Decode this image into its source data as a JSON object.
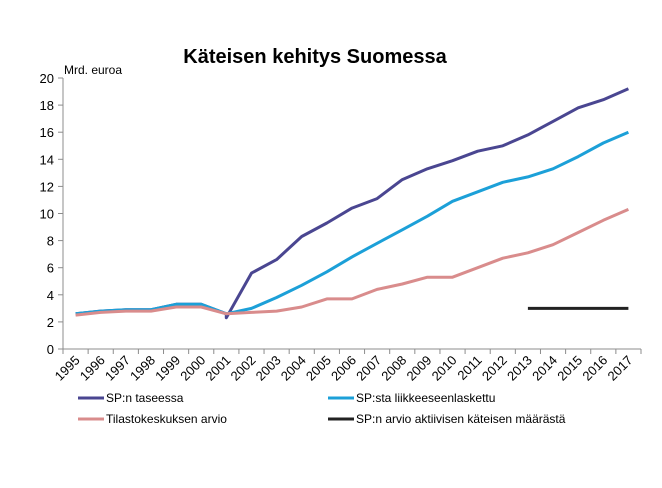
{
  "chart_data": {
    "type": "line",
    "title": "Käteisen kehitys Suomessa",
    "ylabel": "Mrd. euroa",
    "xlabel": "",
    "ylim": [
      0,
      20
    ],
    "y_ticks": [
      "0",
      "2",
      "4",
      "6",
      "8",
      "10",
      "12",
      "14",
      "16",
      "18",
      "20"
    ],
    "categories": [
      "1995",
      "1996",
      "1997",
      "1998",
      "1999",
      "2000",
      "2001",
      "2002",
      "2003",
      "2004",
      "2005",
      "2006",
      "2007",
      "2008",
      "2009",
      "2010",
      "2011",
      "2012",
      "2013",
      "2014",
      "2015",
      "2016",
      "2017"
    ],
    "grid": false,
    "legend_position": "bottom",
    "series": [
      {
        "name": "SP:n taseessa",
        "color": "#4a4691",
        "x": [
          "1995",
          "1996",
          "1997",
          "1998",
          "1999",
          "2000",
          "2001",
          "2001",
          "2002",
          "2003",
          "2004",
          "2005",
          "2006",
          "2007",
          "2008",
          "2009",
          "2010",
          "2011",
          "2012",
          "2013",
          "2014",
          "2015",
          "2016",
          "2017"
        ],
        "values": [
          2.6,
          2.8,
          2.9,
          2.9,
          3.3,
          3.3,
          2.6,
          2.3,
          5.6,
          6.6,
          8.3,
          9.3,
          10.4,
          11.1,
          12.5,
          13.3,
          13.9,
          14.6,
          15.0,
          15.8,
          16.8,
          17.8,
          18.4,
          19.2
        ]
      },
      {
        "name": "SP:sta liikkeeseenlaskettu",
        "color": "#1ca0d8",
        "x": [
          "1995",
          "1996",
          "1997",
          "1998",
          "1999",
          "2000",
          "2001",
          "2002",
          "2003",
          "2004",
          "2005",
          "2006",
          "2007",
          "2008",
          "2009",
          "2010",
          "2011",
          "2012",
          "2013",
          "2014",
          "2015",
          "2016",
          "2017"
        ],
        "values": [
          2.6,
          2.8,
          2.9,
          2.9,
          3.3,
          3.3,
          2.6,
          3.0,
          3.8,
          4.7,
          5.7,
          6.8,
          7.8,
          8.8,
          9.8,
          10.9,
          11.6,
          12.3,
          12.7,
          13.3,
          14.2,
          15.2,
          16.0
        ]
      },
      {
        "name": "Tilastokeskuksen arvio",
        "color": "#d98c8c",
        "x": [
          "1995",
          "1996",
          "1997",
          "1998",
          "1999",
          "2000",
          "2001",
          "2002",
          "2003",
          "2004",
          "2005",
          "2006",
          "2007",
          "2008",
          "2009",
          "2010",
          "2011",
          "2012",
          "2013",
          "2014",
          "2015",
          "2016",
          "2017"
        ],
        "values": [
          2.5,
          2.7,
          2.8,
          2.8,
          3.1,
          3.1,
          2.6,
          2.7,
          2.8,
          3.1,
          3.7,
          3.7,
          4.4,
          4.8,
          5.3,
          5.3,
          6.0,
          6.7,
          7.1,
          7.7,
          8.6,
          9.5,
          10.3
        ]
      },
      {
        "name": "SP:n arvio aktiivisen käteisen määrästä",
        "color": "#222222",
        "x": [
          "2013",
          "2017"
        ],
        "values": [
          3.0,
          3.0
        ]
      }
    ]
  }
}
